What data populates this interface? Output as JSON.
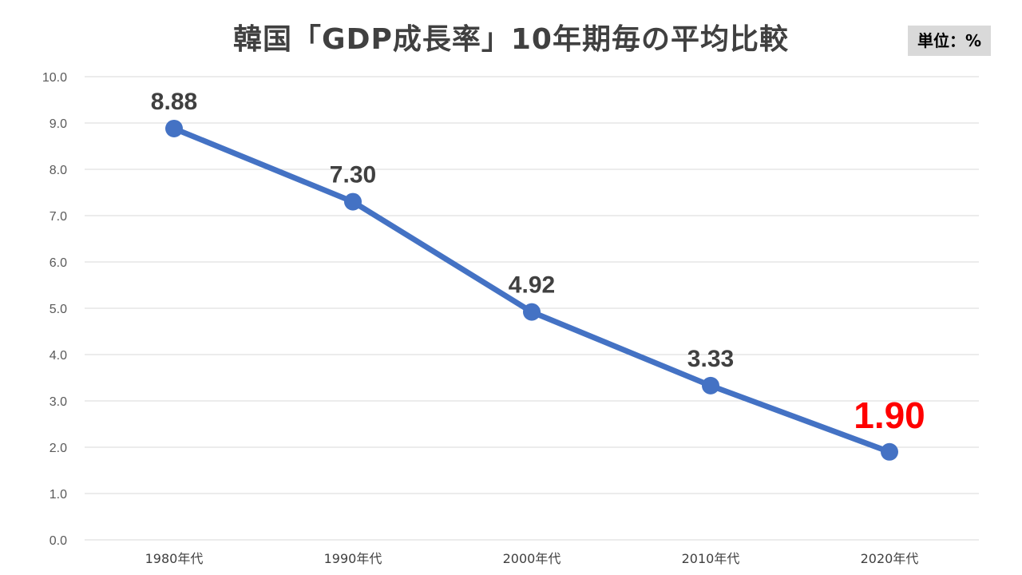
{
  "chart_data": {
    "type": "line",
    "title": "韓国「GDP成長率」10年期毎の平均比較",
    "unit_label": "単位：%",
    "categories": [
      "1980年代",
      "1990年代",
      "2000年代",
      "2010年代",
      "2020年代"
    ],
    "series": [
      {
        "values": [
          8.88,
          7.3,
          4.92,
          3.33,
          1.9
        ],
        "data_labels": [
          "8.88",
          "7.30",
          "4.92",
          "3.33",
          "1.90"
        ],
        "color": "#4472c4"
      }
    ],
    "highlight_index": 4,
    "highlight_color": "#ff0000",
    "label_color": "#404040",
    "ylim": [
      0,
      10
    ],
    "yticks": [
      "0.0",
      "1.0",
      "2.0",
      "3.0",
      "4.0",
      "5.0",
      "6.0",
      "7.0",
      "8.0",
      "9.0",
      "10.0"
    ],
    "grid": true,
    "legend": "none"
  }
}
